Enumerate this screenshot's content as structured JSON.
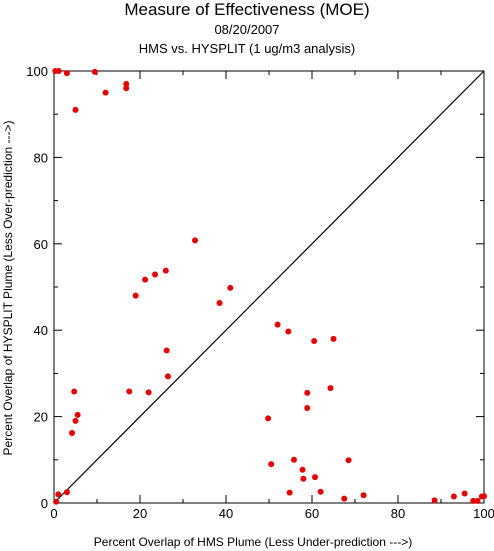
{
  "chart_data": {
    "type": "scatter",
    "title": "Measure of Effectiveness (MOE)",
    "date": "08/20/2007",
    "subtitle": "HMS vs. HYSPLIT  (1 ug/m3 analysis)",
    "xlabel": "Percent Overlap of HMS Plume (Less Under-prediction --->)",
    "ylabel": "Percent Overlap of HYSPLIT Plume (Less Over-prediction --->)",
    "xlim": [
      0,
      100
    ],
    "ylim": [
      0,
      100
    ],
    "xticks": [
      "0",
      "20",
      "40",
      "60",
      "80",
      "100"
    ],
    "yticks": [
      "0",
      "20",
      "40",
      "60",
      "80",
      "100"
    ],
    "reference_line": "1:1 diagonal",
    "grid": false,
    "point_color": "#e60000",
    "points": [
      [
        0.3,
        100
      ],
      [
        1.1,
        100
      ],
      [
        3.0,
        99.5
      ],
      [
        9.5,
        99.8
      ],
      [
        16.8,
        97.0
      ],
      [
        16.8,
        96.0
      ],
      [
        12.0,
        95.0
      ],
      [
        5.0,
        91.0
      ],
      [
        32.8,
        60.8
      ],
      [
        26.0,
        53.8
      ],
      [
        23.5,
        52.9
      ],
      [
        21.2,
        51.7
      ],
      [
        41.0,
        49.8
      ],
      [
        19.0,
        48.0
      ],
      [
        38.5,
        46.3
      ],
      [
        52.0,
        41.3
      ],
      [
        54.5,
        39.7
      ],
      [
        65.0,
        38.0
      ],
      [
        60.5,
        37.5
      ],
      [
        26.2,
        35.3
      ],
      [
        26.5,
        29.3
      ],
      [
        64.3,
        26.6
      ],
      [
        4.7,
        25.8
      ],
      [
        17.5,
        25.8
      ],
      [
        22.0,
        25.6
      ],
      [
        58.9,
        25.5
      ],
      [
        58.9,
        22.0
      ],
      [
        5.5,
        20.4
      ],
      [
        5.0,
        19.0
      ],
      [
        49.8,
        19.6
      ],
      [
        4.2,
        16.2
      ],
      [
        68.5,
        9.9
      ],
      [
        55.8,
        10.0
      ],
      [
        50.5,
        9.0
      ],
      [
        57.8,
        7.7
      ],
      [
        60.7,
        6.0
      ],
      [
        58.0,
        5.6
      ],
      [
        1.0,
        2.0
      ],
      [
        3.0,
        2.5
      ],
      [
        54.8,
        2.4
      ],
      [
        62.0,
        2.6
      ],
      [
        72.0,
        1.8
      ],
      [
        67.5,
        1.0
      ],
      [
        93.0,
        1.5
      ],
      [
        95.5,
        2.2
      ],
      [
        99.5,
        1.5
      ],
      [
        100.0,
        1.6
      ],
      [
        88.5,
        0.6
      ],
      [
        97.5,
        0.5
      ],
      [
        98.5,
        0.5
      ],
      [
        0.5,
        0.3
      ]
    ]
  }
}
